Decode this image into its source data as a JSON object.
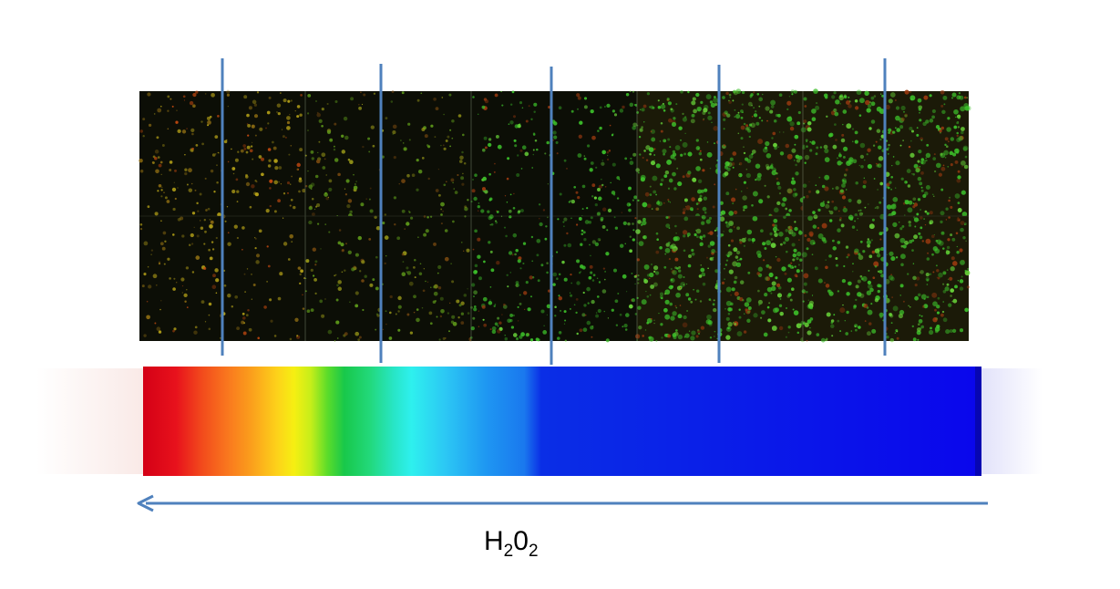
{
  "micrograph_grid": {
    "columns": 5,
    "rows": 2,
    "panels": [
      {
        "row": 0,
        "col": 0,
        "tint": "yellow",
        "brightness": 0.35
      },
      {
        "row": 0,
        "col": 1,
        "tint": "green-yellow",
        "brightness": 0.25
      },
      {
        "row": 0,
        "col": 2,
        "tint": "green",
        "brightness": 0.3
      },
      {
        "row": 0,
        "col": 3,
        "tint": "green",
        "brightness": 0.7
      },
      {
        "row": 0,
        "col": 4,
        "tint": "green",
        "brightness": 0.75
      },
      {
        "row": 1,
        "col": 0,
        "tint": "yellow",
        "brightness": 0.2
      },
      {
        "row": 1,
        "col": 1,
        "tint": "green-yellow",
        "brightness": 0.25
      },
      {
        "row": 1,
        "col": 2,
        "tint": "green",
        "brightness": 0.45
      },
      {
        "row": 1,
        "col": 3,
        "tint": "green",
        "brightness": 0.8
      },
      {
        "row": 1,
        "col": 4,
        "tint": "green",
        "brightness": 0.7
      }
    ]
  },
  "gradient_bar": {
    "stops": [
      {
        "offset": 0.0,
        "color": "#d40016"
      },
      {
        "offset": 0.04,
        "color": "#e8121c"
      },
      {
        "offset": 0.07,
        "color": "#f24a1c"
      },
      {
        "offset": 0.1,
        "color": "#f9761e"
      },
      {
        "offset": 0.13,
        "color": "#fba01c"
      },
      {
        "offset": 0.16,
        "color": "#fdd21a"
      },
      {
        "offset": 0.18,
        "color": "#f6ef12"
      },
      {
        "offset": 0.2,
        "color": "#c6ee1a"
      },
      {
        "offset": 0.22,
        "color": "#5bdc2a"
      },
      {
        "offset": 0.24,
        "color": "#18c84a"
      },
      {
        "offset": 0.27,
        "color": "#22d87a"
      },
      {
        "offset": 0.3,
        "color": "#28e6c8"
      },
      {
        "offset": 0.32,
        "color": "#2ef0ee"
      },
      {
        "offset": 0.36,
        "color": "#2cc8f4"
      },
      {
        "offset": 0.41,
        "color": "#1e96f2"
      },
      {
        "offset": 0.455,
        "color": "#1a78ee"
      },
      {
        "offset": 0.475,
        "color": "#0a2ee6"
      },
      {
        "offset": 1.0,
        "color": "#0a06ec"
      }
    ]
  },
  "arrow": {
    "direction": "left",
    "color": "#4f81bd"
  },
  "marker_line_color": "#4f81bd",
  "h2o2_label": {
    "base1": "H",
    "sub1": "2",
    "base2": "0",
    "sub2": "2"
  }
}
